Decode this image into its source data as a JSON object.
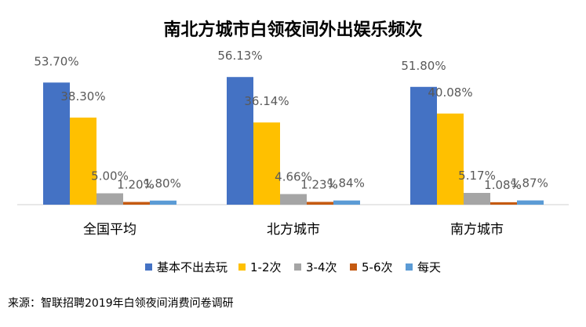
{
  "chart_data": {
    "type": "bar",
    "title": "南北方城市白领夜间外出娱乐频次",
    "categories": [
      "全国平均",
      "北方城市",
      "南方城市"
    ],
    "series": [
      {
        "name": "基本不出去玩",
        "values": [
          53.7,
          56.13,
          51.8
        ],
        "labels": [
          "53.70%",
          "56.13%",
          "51.80%"
        ],
        "color": "#4472C4"
      },
      {
        "name": "1-2次",
        "values": [
          38.3,
          36.14,
          40.08
        ],
        "labels": [
          "38.30%",
          "36.14%",
          "40.08%"
        ],
        "color": "#FFC000"
      },
      {
        "name": "3-4次",
        "values": [
          5.0,
          4.66,
          5.17
        ],
        "labels": [
          "5.00%",
          "4.66%",
          "5.17%"
        ],
        "color": "#A5A5A5"
      },
      {
        "name": "5-6次",
        "values": [
          1.2,
          1.23,
          1.08
        ],
        "labels": [
          "1.20%",
          "1.23%",
          "1.08%"
        ],
        "color": "#C55A11"
      },
      {
        "name": "每天",
        "values": [
          1.8,
          1.84,
          1.87
        ],
        "labels": [
          "1.80%",
          "1.84%",
          "1.87%"
        ],
        "color": "#5B9BD5"
      }
    ],
    "ylim": [
      0,
      60
    ],
    "grid": false,
    "legend": "bottom"
  },
  "source": "来源：智联招聘2019年白领夜间消费问卷调研"
}
